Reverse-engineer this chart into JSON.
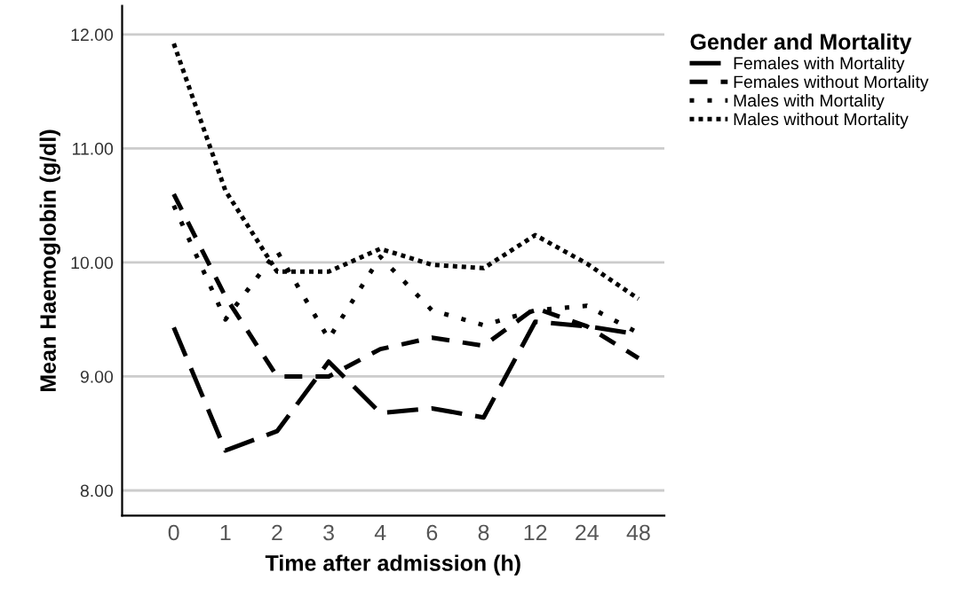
{
  "chart_data": {
    "type": "line",
    "xlabel": "Time after admission (h)",
    "ylabel": "Mean Haemoglobin (g/dl)",
    "legend_title": "Gender and Mortality",
    "categories": [
      "0",
      "1",
      "2",
      "3",
      "4",
      "6",
      "8",
      "12",
      "24",
      "48"
    ],
    "series": [
      {
        "name": "Females with Mortality",
        "color": "#000000",
        "line_style": "long dashed",
        "values": [
          9.43,
          8.35,
          8.52,
          9.13,
          8.68,
          8.72,
          8.64,
          9.48,
          9.44,
          9.37
        ]
      },
      {
        "name": "Females without Mortality",
        "color": "#000000",
        "line_style": "dashed",
        "values": [
          10.6,
          9.7,
          9.0,
          9.0,
          9.24,
          9.34,
          9.27,
          9.6,
          9.44,
          9.16
        ]
      },
      {
        "name": "Males with Mortality",
        "color": "#000000",
        "line_style": "dotted",
        "values": [
          10.5,
          9.5,
          10.1,
          9.33,
          10.05,
          9.58,
          9.45,
          9.58,
          9.62,
          9.38
        ]
      },
      {
        "name": "Males without Mortality",
        "color": "#000000",
        "line_style": "dense dotted",
        "values": [
          11.92,
          10.63,
          9.92,
          9.92,
          10.12,
          9.98,
          9.95,
          10.24,
          9.99,
          9.68
        ]
      }
    ],
    "ylim": [
      7.78,
      12.25
    ],
    "yticks": [
      {
        "value": 8,
        "label": "8.00"
      },
      {
        "value": 9,
        "label": "9.00"
      },
      {
        "value": 10,
        "label": "10.00"
      },
      {
        "value": 11,
        "label": "11.00"
      },
      {
        "value": 12,
        "label": "12.00"
      }
    ],
    "grid": "y",
    "legend": "top right",
    "marker": "none"
  }
}
